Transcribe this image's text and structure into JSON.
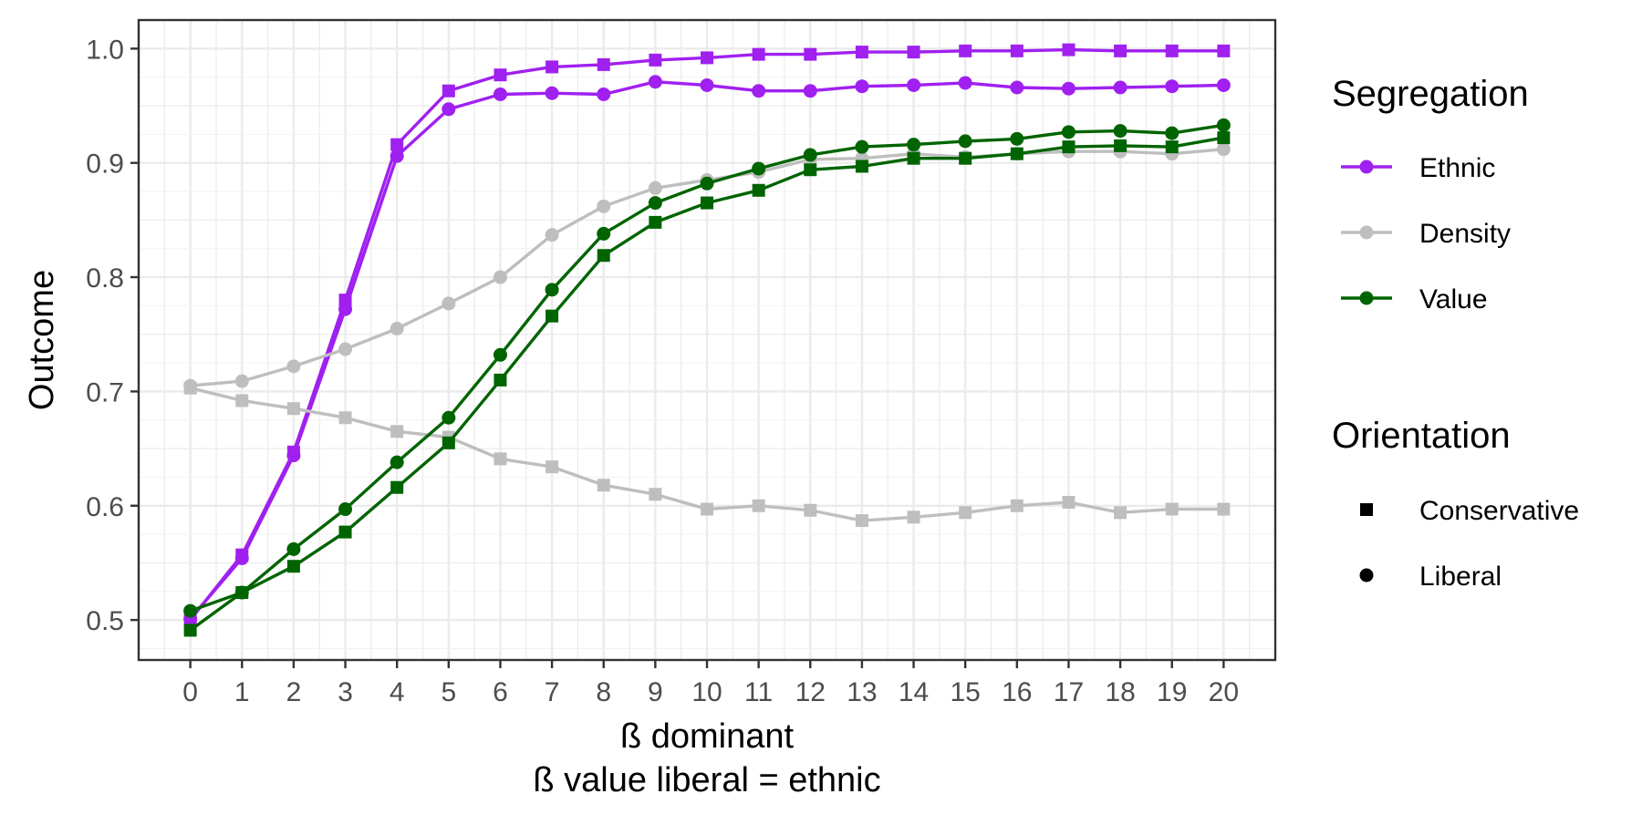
{
  "chart_data": {
    "type": "line",
    "xlabel": "ß dominant",
    "xlabel2": "ß value liberal = ethnic",
    "ylabel": "Outcome",
    "x": [
      0,
      1,
      2,
      3,
      4,
      5,
      6,
      7,
      8,
      9,
      10,
      11,
      12,
      13,
      14,
      15,
      16,
      17,
      18,
      19,
      20
    ],
    "xlim": [
      -1,
      21
    ],
    "ylim": [
      0.465,
      1.025
    ],
    "yticks": [
      0.5,
      0.6,
      0.7,
      0.8,
      0.9,
      1.0
    ],
    "ytick_labels": [
      "0.5",
      "0.6",
      "0.7",
      "0.8",
      "0.9",
      "1.0"
    ],
    "grid": true,
    "legend_position": "right",
    "legend": {
      "color_title": "Segregation",
      "color_items": [
        {
          "label": "Ethnic",
          "color": "#a020f0"
        },
        {
          "label": "Density",
          "color": "#bebebe"
        },
        {
          "label": "Value",
          "color": "#006400"
        }
      ],
      "shape_title": "Orientation",
      "shape_items": [
        {
          "label": "Conservative",
          "shape": "square"
        },
        {
          "label": "Liberal",
          "shape": "circle"
        }
      ]
    },
    "series": [
      {
        "segregation": "Ethnic",
        "orientation": "Conservative",
        "color": "#a020f0",
        "shape": "square",
        "values": [
          0.5,
          0.557,
          0.647,
          0.78,
          0.916,
          0.963,
          0.977,
          0.984,
          0.986,
          0.99,
          0.992,
          0.995,
          0.995,
          0.997,
          0.997,
          0.998,
          0.998,
          0.999,
          0.998,
          0.998,
          0.998
        ]
      },
      {
        "segregation": "Ethnic",
        "orientation": "Liberal",
        "color": "#a020f0",
        "shape": "circle",
        "values": [
          0.501,
          0.554,
          0.644,
          0.772,
          0.906,
          0.947,
          0.96,
          0.961,
          0.96,
          0.971,
          0.968,
          0.963,
          0.963,
          0.967,
          0.968,
          0.97,
          0.966,
          0.965,
          0.966,
          0.967,
          0.968
        ]
      },
      {
        "segregation": "Density",
        "orientation": "Conservative",
        "color": "#bebebe",
        "shape": "square",
        "values": [
          0.703,
          0.692,
          0.685,
          0.677,
          0.665,
          0.66,
          0.641,
          0.634,
          0.618,
          0.61,
          0.597,
          0.6,
          0.596,
          0.587,
          0.59,
          0.594,
          0.6,
          0.603,
          0.594,
          0.597,
          0.597
        ]
      },
      {
        "segregation": "Density",
        "orientation": "Liberal",
        "color": "#bebebe",
        "shape": "circle",
        "values": [
          0.705,
          0.709,
          0.722,
          0.737,
          0.755,
          0.777,
          0.8,
          0.837,
          0.862,
          0.878,
          0.885,
          0.892,
          0.903,
          0.904,
          0.908,
          0.905,
          0.908,
          0.91,
          0.91,
          0.908,
          0.912
        ]
      },
      {
        "segregation": "Value",
        "orientation": "Conservative",
        "color": "#006400",
        "shape": "square",
        "values": [
          0.491,
          0.524,
          0.547,
          0.577,
          0.616,
          0.655,
          0.71,
          0.766,
          0.819,
          0.848,
          0.865,
          0.876,
          0.894,
          0.897,
          0.904,
          0.904,
          0.908,
          0.914,
          0.915,
          0.914,
          0.922
        ]
      },
      {
        "segregation": "Value",
        "orientation": "Liberal",
        "color": "#006400",
        "shape": "circle",
        "values": [
          0.508,
          0.524,
          0.562,
          0.597,
          0.638,
          0.677,
          0.732,
          0.789,
          0.838,
          0.865,
          0.882,
          0.895,
          0.907,
          0.914,
          0.916,
          0.919,
          0.921,
          0.927,
          0.928,
          0.926,
          0.933
        ]
      }
    ]
  }
}
